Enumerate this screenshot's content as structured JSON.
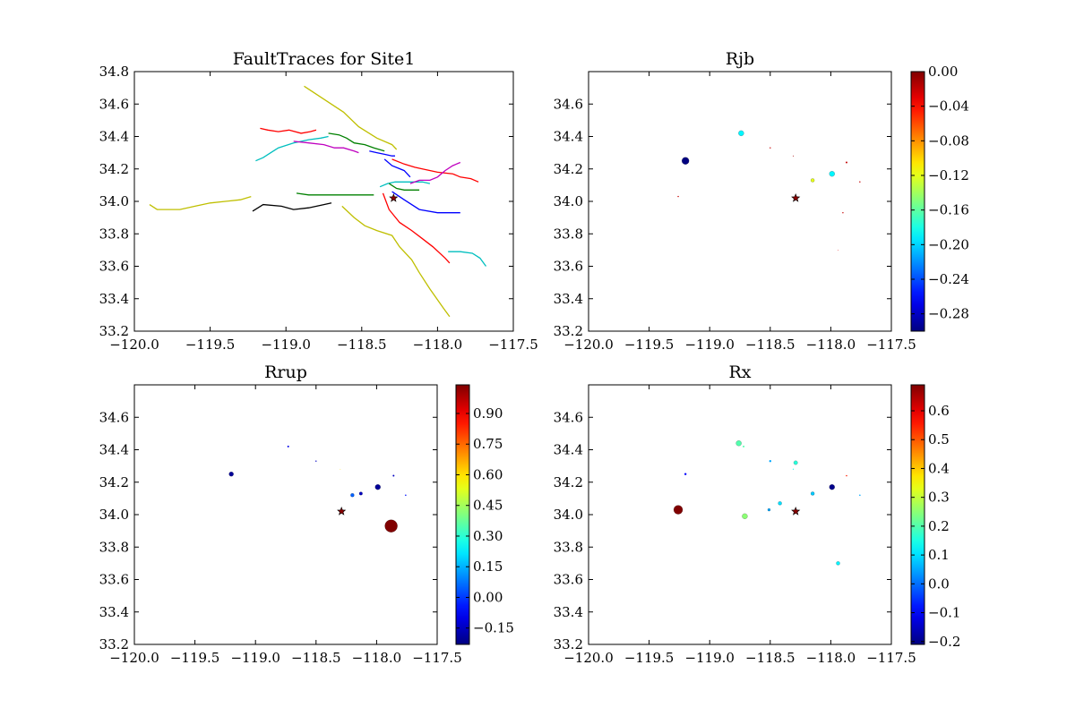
{
  "chart_data": [
    {
      "type": "line",
      "title": "FaultTraces for Site1",
      "xlim": [
        -120.0,
        -117.5
      ],
      "ylim": [
        33.2,
        34.8
      ],
      "xticks": [
        "−120.0",
        "−119.5",
        "−119.0",
        "−118.5",
        "−118.0",
        "−117.5"
      ],
      "yticks": [
        "33.2",
        "33.4",
        "33.6",
        "33.8",
        "34.0",
        "34.2",
        "34.4",
        "34.6",
        "34.8"
      ],
      "site": {
        "x": -118.29,
        "y": 34.02,
        "marker": "star",
        "color": "#8b0000"
      },
      "series": [
        {
          "color": "#bfbf00",
          "x": [
            -118.88,
            -118.75,
            -118.62,
            -118.52,
            -118.4,
            -118.3,
            -118.27
          ],
          "y": [
            34.71,
            34.63,
            34.55,
            34.46,
            34.39,
            34.35,
            34.32
          ]
        },
        {
          "color": "#bfbf00",
          "x": [
            -119.9,
            -119.85,
            -119.7,
            -119.6,
            -119.5,
            -119.4,
            -119.3,
            -119.23
          ],
          "y": [
            33.98,
            33.95,
            33.95,
            33.97,
            33.99,
            34.0,
            34.01,
            34.03
          ]
        },
        {
          "color": "#bfbf00",
          "x": [
            -118.63,
            -118.55,
            -118.48,
            -118.4,
            -118.3,
            -118.25,
            -118.17,
            -118.12,
            -118.05,
            -117.96,
            -117.92
          ],
          "y": [
            33.97,
            33.9,
            33.85,
            33.82,
            33.79,
            33.72,
            33.64,
            33.56,
            33.46,
            33.34,
            33.29
          ]
        },
        {
          "color": "#ff0000",
          "x": [
            -119.17,
            -119.12,
            -119.05,
            -118.98,
            -118.9,
            -118.84,
            -118.8
          ],
          "y": [
            34.45,
            34.44,
            34.43,
            34.44,
            34.42,
            34.43,
            34.44
          ]
        },
        {
          "color": "#ff0000",
          "x": [
            -118.3,
            -118.22,
            -118.15,
            -118.1,
            -118.0,
            -117.9,
            -117.85,
            -117.78,
            -117.73
          ],
          "y": [
            34.26,
            34.23,
            34.21,
            34.2,
            34.18,
            34.17,
            34.15,
            34.14,
            34.12
          ]
        },
        {
          "color": "#ff0000",
          "x": [
            -118.36,
            -118.32,
            -118.25,
            -118.17,
            -118.1,
            -118.03,
            -117.95,
            -117.92
          ],
          "y": [
            34.05,
            33.95,
            33.87,
            33.82,
            33.77,
            33.72,
            33.65,
            33.62
          ]
        },
        {
          "color": "#00bfbf",
          "x": [
            -119.2,
            -119.15,
            -119.1,
            -119.05,
            -118.95,
            -118.85,
            -118.77,
            -118.72
          ],
          "y": [
            34.25,
            34.27,
            34.3,
            34.33,
            34.36,
            34.38,
            34.39,
            34.4
          ]
        },
        {
          "color": "#00bfbf",
          "x": [
            -118.38,
            -118.33,
            -118.28,
            -118.22,
            -118.15,
            -118.1,
            -118.05
          ],
          "y": [
            34.09,
            34.11,
            34.12,
            34.12,
            34.12,
            34.12,
            34.11
          ]
        },
        {
          "color": "#00bfbf",
          "x": [
            -117.93,
            -117.85,
            -117.77,
            -117.72,
            -117.68
          ],
          "y": [
            33.69,
            33.69,
            33.68,
            33.65,
            33.6
          ]
        },
        {
          "color": "#008000",
          "x": [
            -118.72,
            -118.65,
            -118.6,
            -118.55,
            -118.48,
            -118.42,
            -118.35
          ],
          "y": [
            34.42,
            34.41,
            34.39,
            34.36,
            34.35,
            34.33,
            34.31
          ]
        },
        {
          "color": "#008000",
          "x": [
            -118.93,
            -118.85,
            -118.75,
            -118.65,
            -118.55,
            -118.47,
            -118.42
          ],
          "y": [
            34.05,
            34.04,
            34.04,
            34.04,
            34.04,
            34.04,
            34.04
          ]
        },
        {
          "color": "#008000",
          "x": [
            -118.32,
            -118.27,
            -118.22,
            -118.15,
            -118.12
          ],
          "y": [
            34.11,
            34.08,
            34.07,
            34.07,
            34.07
          ]
        },
        {
          "color": "#bf00bf",
          "x": [
            -118.95,
            -118.85,
            -118.75,
            -118.68,
            -118.62,
            -118.55,
            -118.52
          ],
          "y": [
            34.37,
            34.36,
            34.35,
            34.33,
            34.33,
            34.31,
            34.3
          ]
        },
        {
          "color": "#bf00bf",
          "x": [
            -118.18,
            -118.12,
            -118.05,
            -118.0,
            -117.95,
            -117.9,
            -117.85
          ],
          "y": [
            34.11,
            34.13,
            34.13,
            34.15,
            34.19,
            34.22,
            34.24
          ]
        },
        {
          "color": "#0000ff",
          "x": [
            -118.45,
            -118.4,
            -118.35,
            -118.3,
            -118.28
          ],
          "y": [
            34.31,
            34.3,
            34.29,
            34.28,
            34.28
          ]
        },
        {
          "color": "#0000ff",
          "x": [
            -118.35,
            -118.3,
            -118.22,
            -118.18
          ],
          "y": [
            34.26,
            34.22,
            34.19,
            34.15
          ]
        },
        {
          "color": "#0000ff",
          "x": [
            -118.3,
            -118.22,
            -118.12,
            -118.0,
            -117.85
          ],
          "y": [
            34.06,
            34.01,
            33.95,
            33.93,
            33.93
          ]
        },
        {
          "color": "#000000",
          "x": [
            -119.22,
            -119.15,
            -119.03,
            -118.95,
            -118.85,
            -118.75,
            -118.7
          ],
          "y": [
            33.94,
            33.98,
            33.97,
            33.95,
            33.96,
            33.98,
            33.99
          ]
        }
      ]
    },
    {
      "type": "scatter",
      "title": "Rjb",
      "xlim": [
        -120.0,
        -117.5
      ],
      "ylim": [
        33.2,
        34.8
      ],
      "xticks": [
        "−120.0",
        "−119.5",
        "−119.0",
        "−118.5",
        "−118.0",
        "−117.5"
      ],
      "yticks": [
        "33.2",
        "33.4",
        "33.6",
        "33.8",
        "34.0",
        "34.2",
        "34.4",
        "34.6"
      ],
      "colorbar": {
        "min": -0.3,
        "max": 0.0,
        "ticks": [
          -0.28,
          -0.24,
          -0.2,
          -0.16,
          -0.12,
          -0.08,
          -0.04,
          0.0
        ],
        "tick_labels": [
          "−0.28",
          "−0.24",
          "−0.20",
          "−0.16",
          "−0.12",
          "−0.08",
          "−0.04",
          "0.00"
        ]
      },
      "site": {
        "x": -118.29,
        "y": 34.02,
        "marker": "star",
        "color": "#8b0000"
      },
      "points": [
        {
          "x": -119.2,
          "y": 34.25,
          "value": -0.3,
          "size": 4
        },
        {
          "x": -118.74,
          "y": 34.42,
          "value": -0.19,
          "size": 3
        },
        {
          "x": -117.99,
          "y": 34.17,
          "value": -0.19,
          "size": 3
        },
        {
          "x": -118.15,
          "y": 34.13,
          "value": -0.12,
          "size": 2
        },
        {
          "x": -118.5,
          "y": 34.33,
          "value": -0.02,
          "size": 0.7
        },
        {
          "x": -118.31,
          "y": 34.28,
          "value": -0.01,
          "size": 0.5
        },
        {
          "x": -117.87,
          "y": 34.24,
          "value": -0.02,
          "size": 1
        },
        {
          "x": -117.76,
          "y": 34.12,
          "value": -0.02,
          "size": 0.7
        },
        {
          "x": -117.9,
          "y": 33.93,
          "value": -0.02,
          "size": 0.7
        },
        {
          "x": -119.26,
          "y": 34.03,
          "value": -0.02,
          "size": 0.7
        },
        {
          "x": -117.94,
          "y": 33.7,
          "value": -0.03,
          "size": 0.4
        }
      ]
    },
    {
      "type": "scatter",
      "title": "Rrup",
      "xlim": [
        -120.0,
        -117.5
      ],
      "ylim": [
        33.2,
        34.8
      ],
      "xticks": [
        "−120.0",
        "−119.5",
        "−119.0",
        "−118.5",
        "−118.0",
        "−117.5"
      ],
      "yticks": [
        "33.2",
        "33.4",
        "33.6",
        "33.8",
        "34.0",
        "34.2",
        "34.4",
        "34.6"
      ],
      "colorbar": {
        "min": -0.23,
        "max": 1.04,
        "ticks": [
          -0.15,
          0.0,
          0.15,
          0.3,
          0.45,
          0.6,
          0.75,
          0.9
        ],
        "tick_labels": [
          "−0.15",
          "0.00",
          "0.15",
          "0.30",
          "0.45",
          "0.60",
          "0.75",
          "0.90"
        ]
      },
      "site": {
        "x": -118.29,
        "y": 34.02,
        "marker": "star",
        "color": "#8b0000"
      },
      "points": [
        {
          "x": -117.88,
          "y": 33.93,
          "value": 1.04,
          "size": 7
        },
        {
          "x": -119.2,
          "y": 34.25,
          "value": -0.2,
          "size": 2.5
        },
        {
          "x": -117.99,
          "y": 34.17,
          "value": -0.2,
          "size": 3
        },
        {
          "x": -118.2,
          "y": 34.12,
          "value": 0.05,
          "size": 2
        },
        {
          "x": -118.13,
          "y": 34.13,
          "value": -0.15,
          "size": 1.8
        },
        {
          "x": -118.73,
          "y": 34.42,
          "value": -0.1,
          "size": 1
        },
        {
          "x": -118.5,
          "y": 34.33,
          "value": -0.15,
          "size": 0.7
        },
        {
          "x": -118.3,
          "y": 34.28,
          "value": 0.6,
          "size": 0.4
        },
        {
          "x": -117.86,
          "y": 34.24,
          "value": -0.15,
          "size": 1
        },
        {
          "x": -117.76,
          "y": 34.12,
          "value": -0.05,
          "size": 0.8
        }
      ]
    },
    {
      "type": "scatter",
      "title": "Rx",
      "xlim": [
        -120.0,
        -117.5
      ],
      "ylim": [
        33.2,
        34.8
      ],
      "xticks": [
        "−120.0",
        "−119.5",
        "−119.0",
        "−118.5",
        "−118.0",
        "−117.5"
      ],
      "yticks": [
        "33.2",
        "33.4",
        "33.6",
        "33.8",
        "34.0",
        "34.2",
        "34.4",
        "34.6"
      ],
      "colorbar": {
        "min": -0.21,
        "max": 0.69,
        "ticks": [
          -0.2,
          -0.1,
          0.0,
          0.1,
          0.2,
          0.3,
          0.4,
          0.5,
          0.6
        ],
        "tick_labels": [
          "−0.2",
          "−0.1",
          "0.0",
          "0.1",
          "0.2",
          "0.3",
          "0.4",
          "0.5",
          "0.6"
        ]
      },
      "site": {
        "x": -118.29,
        "y": 34.02,
        "marker": "star",
        "color": "#8b0000"
      },
      "points": [
        {
          "x": -119.26,
          "y": 34.03,
          "value": 0.69,
          "size": 5
        },
        {
          "x": -118.76,
          "y": 34.44,
          "value": 0.2,
          "size": 3
        },
        {
          "x": -118.71,
          "y": 33.99,
          "value": 0.25,
          "size": 3
        },
        {
          "x": -118.29,
          "y": 34.32,
          "value": 0.16,
          "size": 2.2
        },
        {
          "x": -117.99,
          "y": 34.17,
          "value": -0.2,
          "size": 3
        },
        {
          "x": -118.15,
          "y": 34.13,
          "value": 0.08,
          "size": 2
        },
        {
          "x": -118.42,
          "y": 34.07,
          "value": 0.1,
          "size": 2
        },
        {
          "x": -118.51,
          "y": 34.03,
          "value": 0.05,
          "size": 1.5
        },
        {
          "x": -117.94,
          "y": 33.7,
          "value": 0.12,
          "size": 2
        },
        {
          "x": -119.2,
          "y": 34.25,
          "value": -0.1,
          "size": 1.2
        },
        {
          "x": -118.5,
          "y": 34.33,
          "value": 0.05,
          "size": 1.2
        },
        {
          "x": -118.72,
          "y": 34.42,
          "value": 0.2,
          "size": 1
        },
        {
          "x": -118.31,
          "y": 34.28,
          "value": 0.15,
          "size": 0.6
        },
        {
          "x": -117.87,
          "y": 34.24,
          "value": 0.55,
          "size": 0.8
        },
        {
          "x": -117.76,
          "y": 34.12,
          "value": 0.05,
          "size": 0.8
        }
      ]
    }
  ]
}
